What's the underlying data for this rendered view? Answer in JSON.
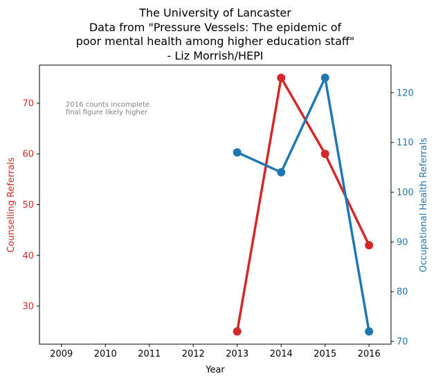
{
  "chart_data": {
    "type": "line",
    "title_lines": [
      "The University of Lancaster",
      "Data from \"Pressure Vessels: The epidemic of",
      "poor mental health among higher education staff\"",
      "- Liz Morrish/HEPI"
    ],
    "xlabel": "Year",
    "x_ticks": [
      "2009",
      "2010",
      "2011",
      "2012",
      "2013",
      "2014",
      "2015",
      "2016"
    ],
    "xlim": [
      2008.5,
      2016.5
    ],
    "grid": false,
    "annotation_lines": [
      "2016 counts incomplete",
      "final figure likely higher"
    ],
    "series": [
      {
        "name": "Counselling Referrals",
        "axis": "left",
        "color": "#d62728",
        "x": [
          2013,
          2014,
          2015,
          2016
        ],
        "values": [
          25,
          75,
          60,
          42
        ]
      },
      {
        "name": "Occupational Health Referrals",
        "axis": "right",
        "color": "#1f77b4",
        "x": [
          2013,
          2014,
          2015,
          2016
        ],
        "values": [
          108,
          104,
          123,
          72
        ]
      }
    ],
    "y_left": {
      "label": "Counselling Referrals",
      "color": "#d62728",
      "ticks": [
        "30",
        "40",
        "50",
        "60",
        "70"
      ],
      "lim": [
        22.5,
        77.5
      ]
    },
    "y_right": {
      "label": "Occupational Health Referrals",
      "color": "#1f77b4",
      "ticks": [
        "70",
        "80",
        "90",
        "100",
        "110",
        "120"
      ],
      "lim": [
        69.45,
        125.55
      ]
    }
  }
}
